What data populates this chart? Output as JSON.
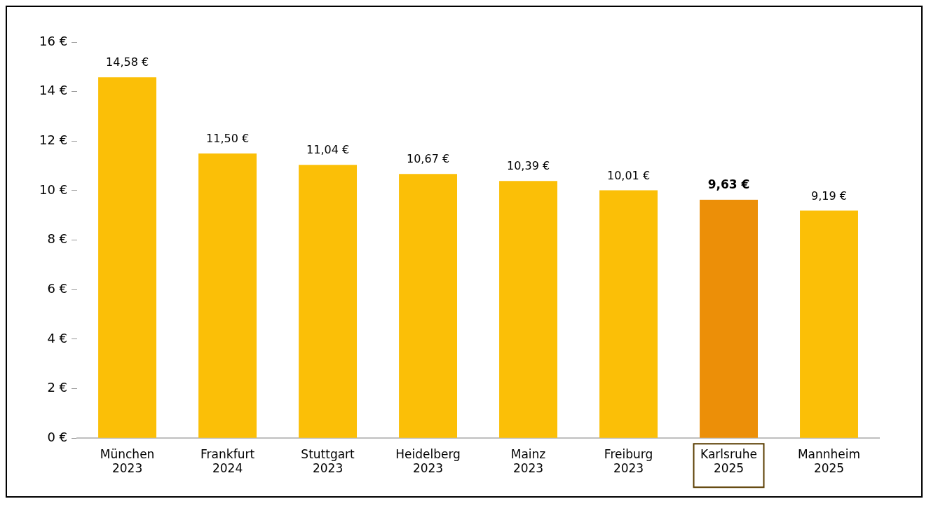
{
  "chart_data": {
    "type": "bar",
    "categories": [
      "München\n2023",
      "Frankfurt\n2024",
      "Stuttgart\n2023",
      "Heidelberg\n2023",
      "Mainz\n2023",
      "Freiburg\n2023",
      "Karlsruhe\n2025",
      "Mannheim\n2025"
    ],
    "values": [
      14.58,
      11.5,
      11.04,
      10.67,
      10.39,
      10.01,
      9.63,
      9.19
    ],
    "colors": [
      "#fbbf07",
      "#fbbf07",
      "#fbbf07",
      "#fbbf07",
      "#fbbf07",
      "#fbbf07",
      "#ec8f08",
      "#fbbf07"
    ],
    "value_labels": [
      "14,58 €",
      "11,50 €",
      "11,04 €",
      "10,67 €",
      "10,39 €",
      "10,01 €",
      "9,63 €",
      "9,19 €"
    ],
    "ylim": [
      0,
      16
    ],
    "yticks": [
      {
        "value": 0,
        "label": "0 €"
      },
      {
        "value": 2,
        "label": "2 €"
      },
      {
        "value": 4,
        "label": "4 €"
      },
      {
        "value": 6,
        "label": "6 €"
      },
      {
        "value": 8,
        "label": "8 €"
      },
      {
        "value": 10,
        "label": "10 €"
      },
      {
        "value": 12,
        "label": "12 €"
      },
      {
        "value": 14,
        "label": "14 €"
      },
      {
        "value": 16,
        "label": "16 €"
      }
    ],
    "grid": false,
    "legend": false
  }
}
